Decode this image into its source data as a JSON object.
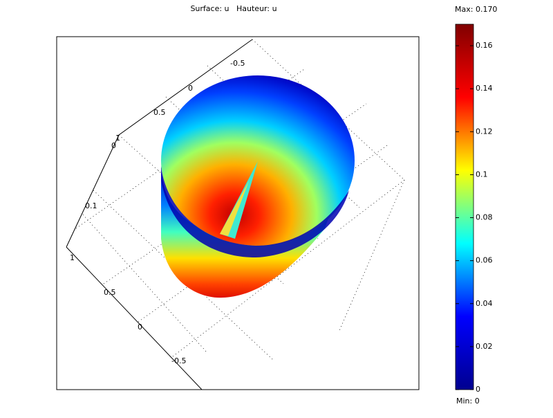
{
  "chart_data": {
    "type": "surface3d",
    "title": "Surface: u   Hauteur: u",
    "max": {
      "value": 0.17,
      "label": "Max: 0.170"
    },
    "min": {
      "value": 0,
      "label": "Min: 0"
    },
    "cticks": [
      0,
      0.02,
      0.04,
      0.06,
      0.08,
      0.1,
      0.12,
      0.14,
      0.16
    ],
    "colormap": [
      "#00008f",
      "#0000ff",
      "#00ffff",
      "#ffff00",
      "#ff0000",
      "#800000"
    ],
    "xticks": [
      -0.5,
      0,
      0.5,
      1
    ],
    "yticks": [
      1,
      0.5,
      0,
      -0.5
    ],
    "zticks": [
      0,
      0.1
    ]
  }
}
